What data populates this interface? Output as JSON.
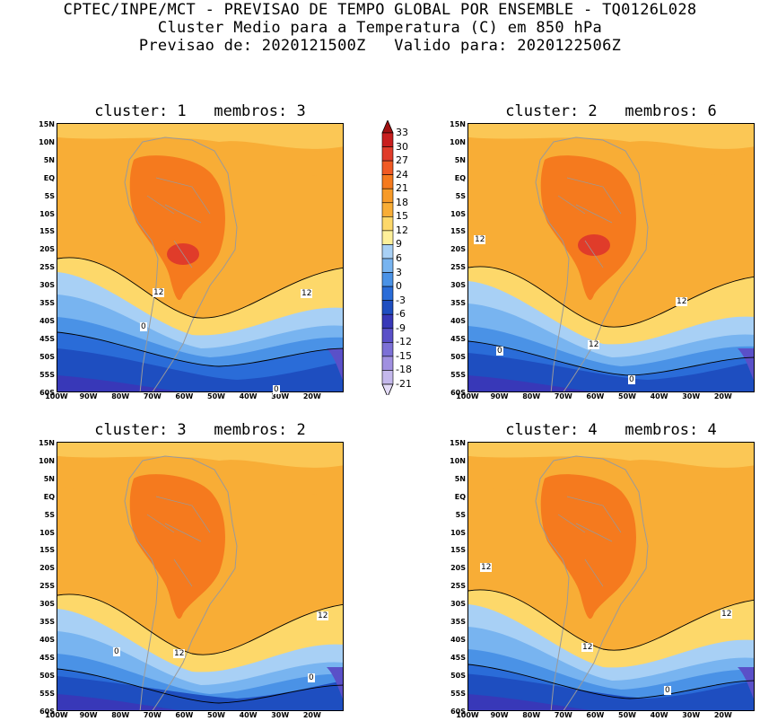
{
  "header": {
    "line1": "CPTEC/INPE/MCT - PREVISAO DE TEMPO GLOBAL POR ENSEMBLE - TQ0126L028",
    "line2": "Cluster Medio para a Temperatura (C) em 850 hPa",
    "line3": "Previsao de: 2020121500Z   Valido para: 2020122506Z"
  },
  "axes": {
    "lat_labels": [
      "15N",
      "10N",
      "5N",
      "EQ",
      "5S",
      "10S",
      "15S",
      "20S",
      "25S",
      "30S",
      "35S",
      "40S",
      "45S",
      "50S",
      "55S",
      "60S"
    ],
    "lon_labels": [
      "100W",
      "90W",
      "80W",
      "70W",
      "60W",
      "50W",
      "40W",
      "30W",
      "20W"
    ]
  },
  "panels": [
    {
      "title": "cluster: 1   membros: 3",
      "contour_labels": [
        "12",
        "12",
        "0",
        "0"
      ]
    },
    {
      "title": "cluster: 2   membros: 6",
      "contour_labels": [
        "12",
        "12",
        "12",
        "0",
        "0"
      ]
    },
    {
      "title": "cluster: 3   membros: 2",
      "contour_labels": [
        "12",
        "12",
        "0",
        "0"
      ]
    },
    {
      "title": "cluster: 4   membros: 4",
      "contour_labels": [
        "12",
        "12",
        "12",
        "0"
      ]
    }
  ],
  "colorbar": {
    "labels": [
      "33",
      "30",
      "27",
      "24",
      "21",
      "18",
      "15",
      "12",
      "9",
      "6",
      "3",
      "0",
      "-3",
      "-6",
      "-9",
      "-12",
      "-15",
      "-18",
      "-21"
    ],
    "colors": [
      "#a01010",
      "#c81e1e",
      "#e03c2a",
      "#f05a24",
      "#f57a1e",
      "#f79a28",
      "#f8ad36",
      "#fdd86a",
      "#fef09a",
      "#a8d0f5",
      "#78b4f0",
      "#4a92e6",
      "#2a6cd8",
      "#1e4ec0",
      "#3838b8",
      "#5a50c8",
      "#7c70d6",
      "#a090e0",
      "#c4b8ec",
      "#e4dcf8"
    ]
  }
}
